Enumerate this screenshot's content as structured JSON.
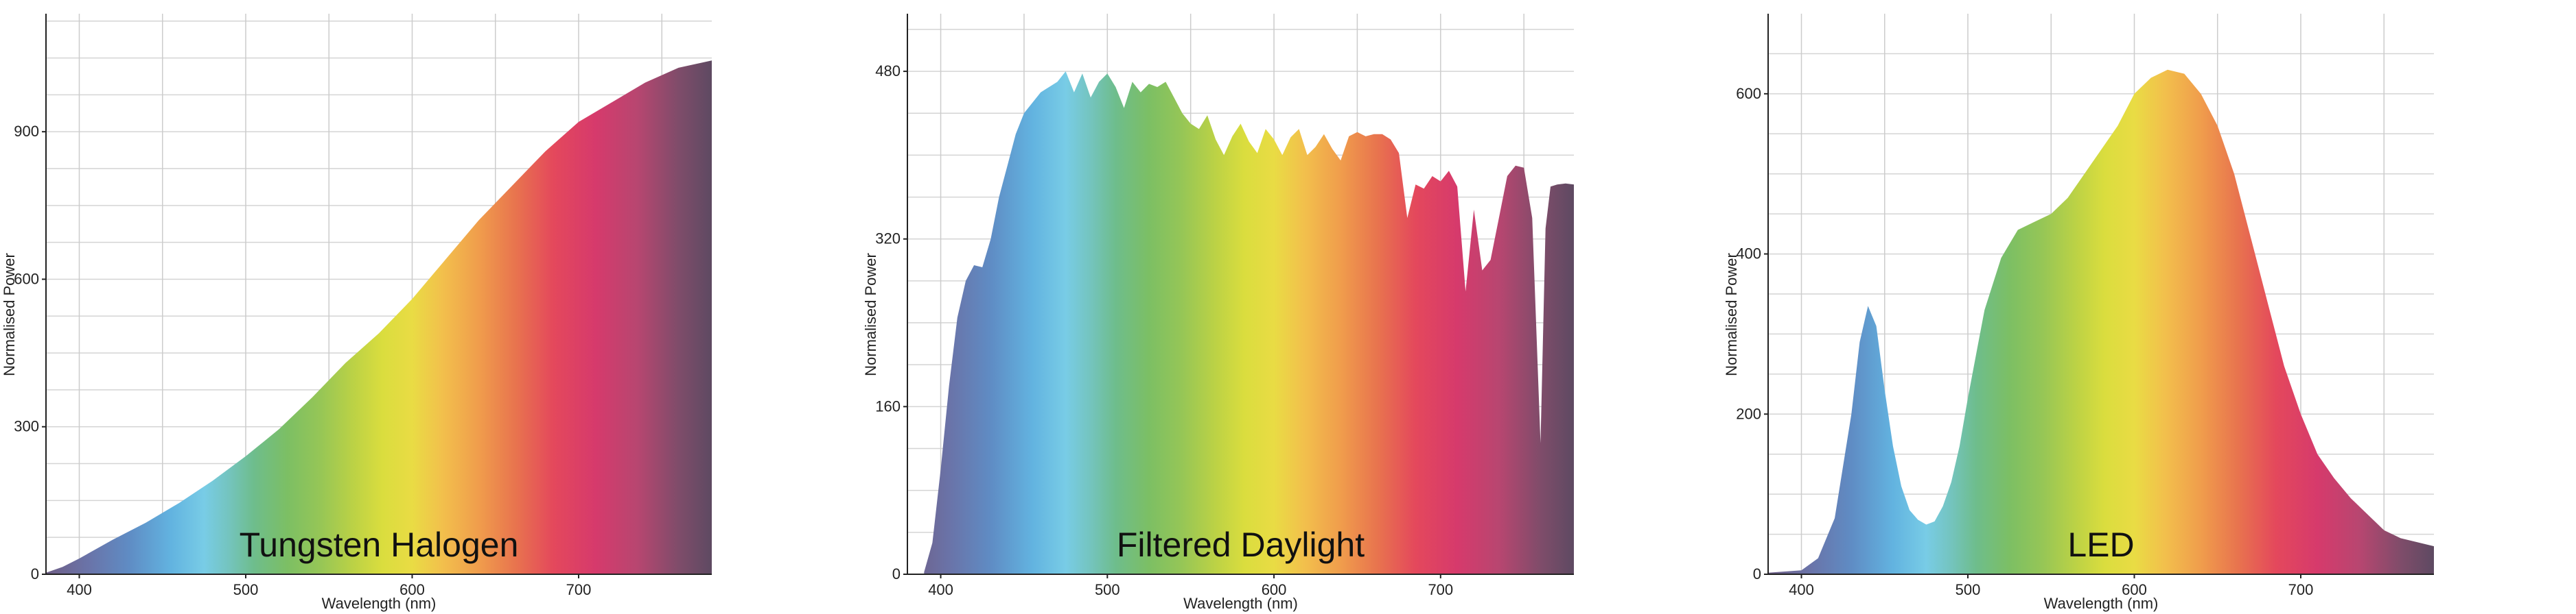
{
  "chart_data": [
    {
      "type": "area",
      "title": "Tungsten Halogen",
      "xlabel": "Wavelength (nm)",
      "ylabel": "Normalised Power",
      "xlim": [
        380,
        780
      ],
      "ylim": [
        0,
        1140
      ],
      "xticks": [
        400,
        500,
        600,
        700
      ],
      "yticks": [
        0,
        300,
        600,
        900
      ],
      "grid": true,
      "x": [
        380,
        390,
        400,
        420,
        440,
        460,
        480,
        500,
        520,
        540,
        560,
        580,
        600,
        620,
        640,
        660,
        680,
        700,
        720,
        740,
        760,
        780
      ],
      "values": [
        3,
        15,
        32,
        70,
        105,
        145,
        190,
        240,
        295,
        360,
        430,
        490,
        560,
        640,
        720,
        790,
        860,
        920,
        960,
        1000,
        1030,
        1045
      ]
    },
    {
      "type": "area",
      "title": "Filtered Daylight",
      "xlabel": "Wavelength (nm)",
      "ylabel": "Normalised Power",
      "xlim": [
        380,
        780
      ],
      "ylim": [
        0,
        535
      ],
      "xticks": [
        400,
        500,
        600,
        700
      ],
      "yticks": [
        0,
        160,
        320,
        480
      ],
      "grid": true,
      "x": [
        390,
        395,
        400,
        405,
        410,
        415,
        420,
        425,
        430,
        435,
        440,
        445,
        450,
        460,
        470,
        475,
        480,
        485,
        490,
        495,
        500,
        505,
        510,
        515,
        520,
        525,
        530,
        535,
        540,
        545,
        550,
        555,
        560,
        565,
        570,
        575,
        580,
        585,
        590,
        595,
        600,
        605,
        610,
        615,
        620,
        625,
        630,
        635,
        640,
        645,
        650,
        655,
        660,
        665,
        670,
        675,
        680,
        685,
        690,
        695,
        700,
        705,
        710,
        715,
        720,
        725,
        730,
        735,
        740,
        745,
        750,
        755,
        760,
        763,
        766,
        770,
        775,
        780
      ],
      "values": [
        2,
        30,
        100,
        180,
        245,
        280,
        295,
        293,
        320,
        360,
        390,
        420,
        440,
        460,
        470,
        480,
        460,
        478,
        455,
        470,
        478,
        465,
        445,
        470,
        460,
        468,
        465,
        470,
        455,
        440,
        430,
        425,
        438,
        415,
        400,
        418,
        430,
        413,
        402,
        425,
        415,
        400,
        417,
        425,
        400,
        408,
        420,
        406,
        395,
        418,
        422,
        418,
        420,
        420,
        415,
        402,
        340,
        372,
        368,
        380,
        375,
        385,
        370,
        270,
        348,
        290,
        300,
        340,
        380,
        390,
        388,
        340,
        125,
        330,
        370,
        372,
        373,
        372
      ]
    },
    {
      "type": "area",
      "title": "LED",
      "xlabel": "Wavelength (nm)",
      "ylabel": "Normalised Power",
      "xlim": [
        380,
        780
      ],
      "ylim": [
        0,
        700
      ],
      "xticks": [
        400,
        500,
        600,
        700
      ],
      "yticks": [
        0,
        200,
        400,
        600
      ],
      "grid": true,
      "x": [
        380,
        400,
        410,
        420,
        430,
        435,
        440,
        445,
        450,
        455,
        460,
        465,
        470,
        475,
        480,
        485,
        490,
        495,
        500,
        505,
        510,
        520,
        530,
        540,
        550,
        560,
        570,
        580,
        590,
        600,
        610,
        620,
        630,
        640,
        650,
        660,
        670,
        680,
        690,
        700,
        710,
        720,
        730,
        740,
        750,
        760,
        770,
        780
      ],
      "values": [
        2,
        5,
        20,
        70,
        200,
        290,
        335,
        310,
        230,
        160,
        110,
        80,
        68,
        62,
        66,
        85,
        115,
        160,
        220,
        275,
        330,
        395,
        430,
        440,
        450,
        470,
        500,
        530,
        560,
        600,
        620,
        630,
        625,
        600,
        560,
        500,
        420,
        340,
        260,
        200,
        150,
        120,
        95,
        75,
        55,
        45,
        40,
        35
      ]
    }
  ]
}
